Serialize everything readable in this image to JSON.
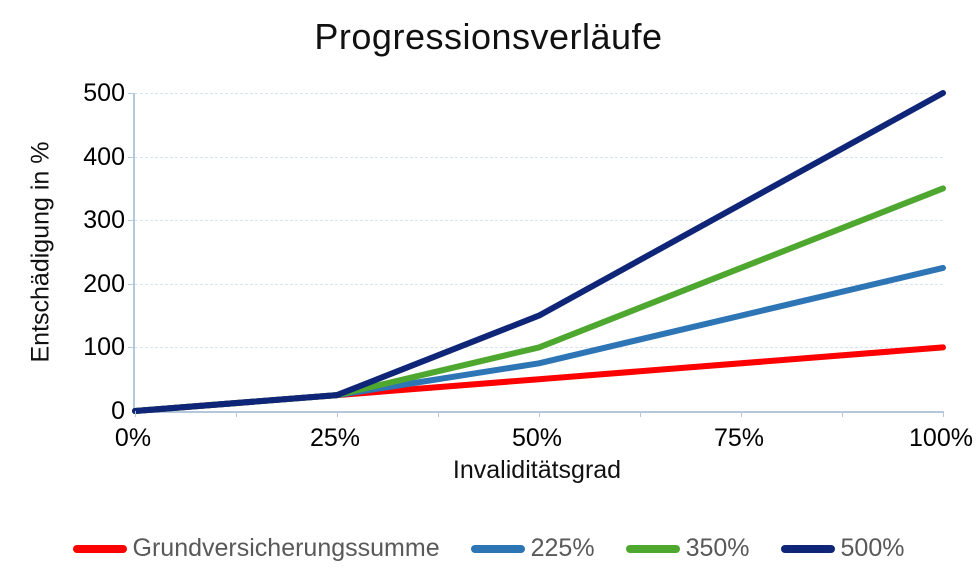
{
  "chart": {
    "title_label": "Progressionsverläufe",
    "axis_color": "#b5c7da",
    "gridline_color": "#d9e3f0",
    "legend_text_color": "#595959"
  },
  "chart_data": {
    "type": "line",
    "title": "Progressionsverläufe",
    "xlabel": "Invaliditätsgrad",
    "ylabel": "Entschädigung in %",
    "xlim": [
      0,
      100
    ],
    "ylim": [
      0,
      500
    ],
    "x_tick_values": [
      0,
      25,
      50,
      75,
      100
    ],
    "x_tick_labels": [
      "0%",
      "25%",
      "50%",
      "75%",
      "100%"
    ],
    "x_minor_tick_step": 12.5,
    "y_tick_values": [
      0,
      100,
      200,
      300,
      400,
      500
    ],
    "y_tick_labels": [
      "0",
      "100",
      "200",
      "300",
      "400",
      "500"
    ],
    "grid": "horizontal-dashed",
    "legend_position": "bottom",
    "series": [
      {
        "name": "Grundversicherungssumme",
        "color": "#fe0000",
        "points": [
          [
            0,
            0
          ],
          [
            25,
            25
          ],
          [
            50,
            50
          ],
          [
            100,
            100
          ]
        ]
      },
      {
        "name": "225%",
        "color": "#2e75b6",
        "points": [
          [
            0,
            0
          ],
          [
            25,
            25
          ],
          [
            50,
            75
          ],
          [
            100,
            225
          ]
        ]
      },
      {
        "name": "350%",
        "color": "#4ea72e",
        "points": [
          [
            0,
            0
          ],
          [
            25,
            25
          ],
          [
            50,
            100
          ],
          [
            100,
            350
          ]
        ]
      },
      {
        "name": "500%",
        "color": "#0f2577",
        "points": [
          [
            0,
            0
          ],
          [
            25,
            25
          ],
          [
            50,
            150
          ],
          [
            100,
            500
          ]
        ]
      }
    ]
  }
}
